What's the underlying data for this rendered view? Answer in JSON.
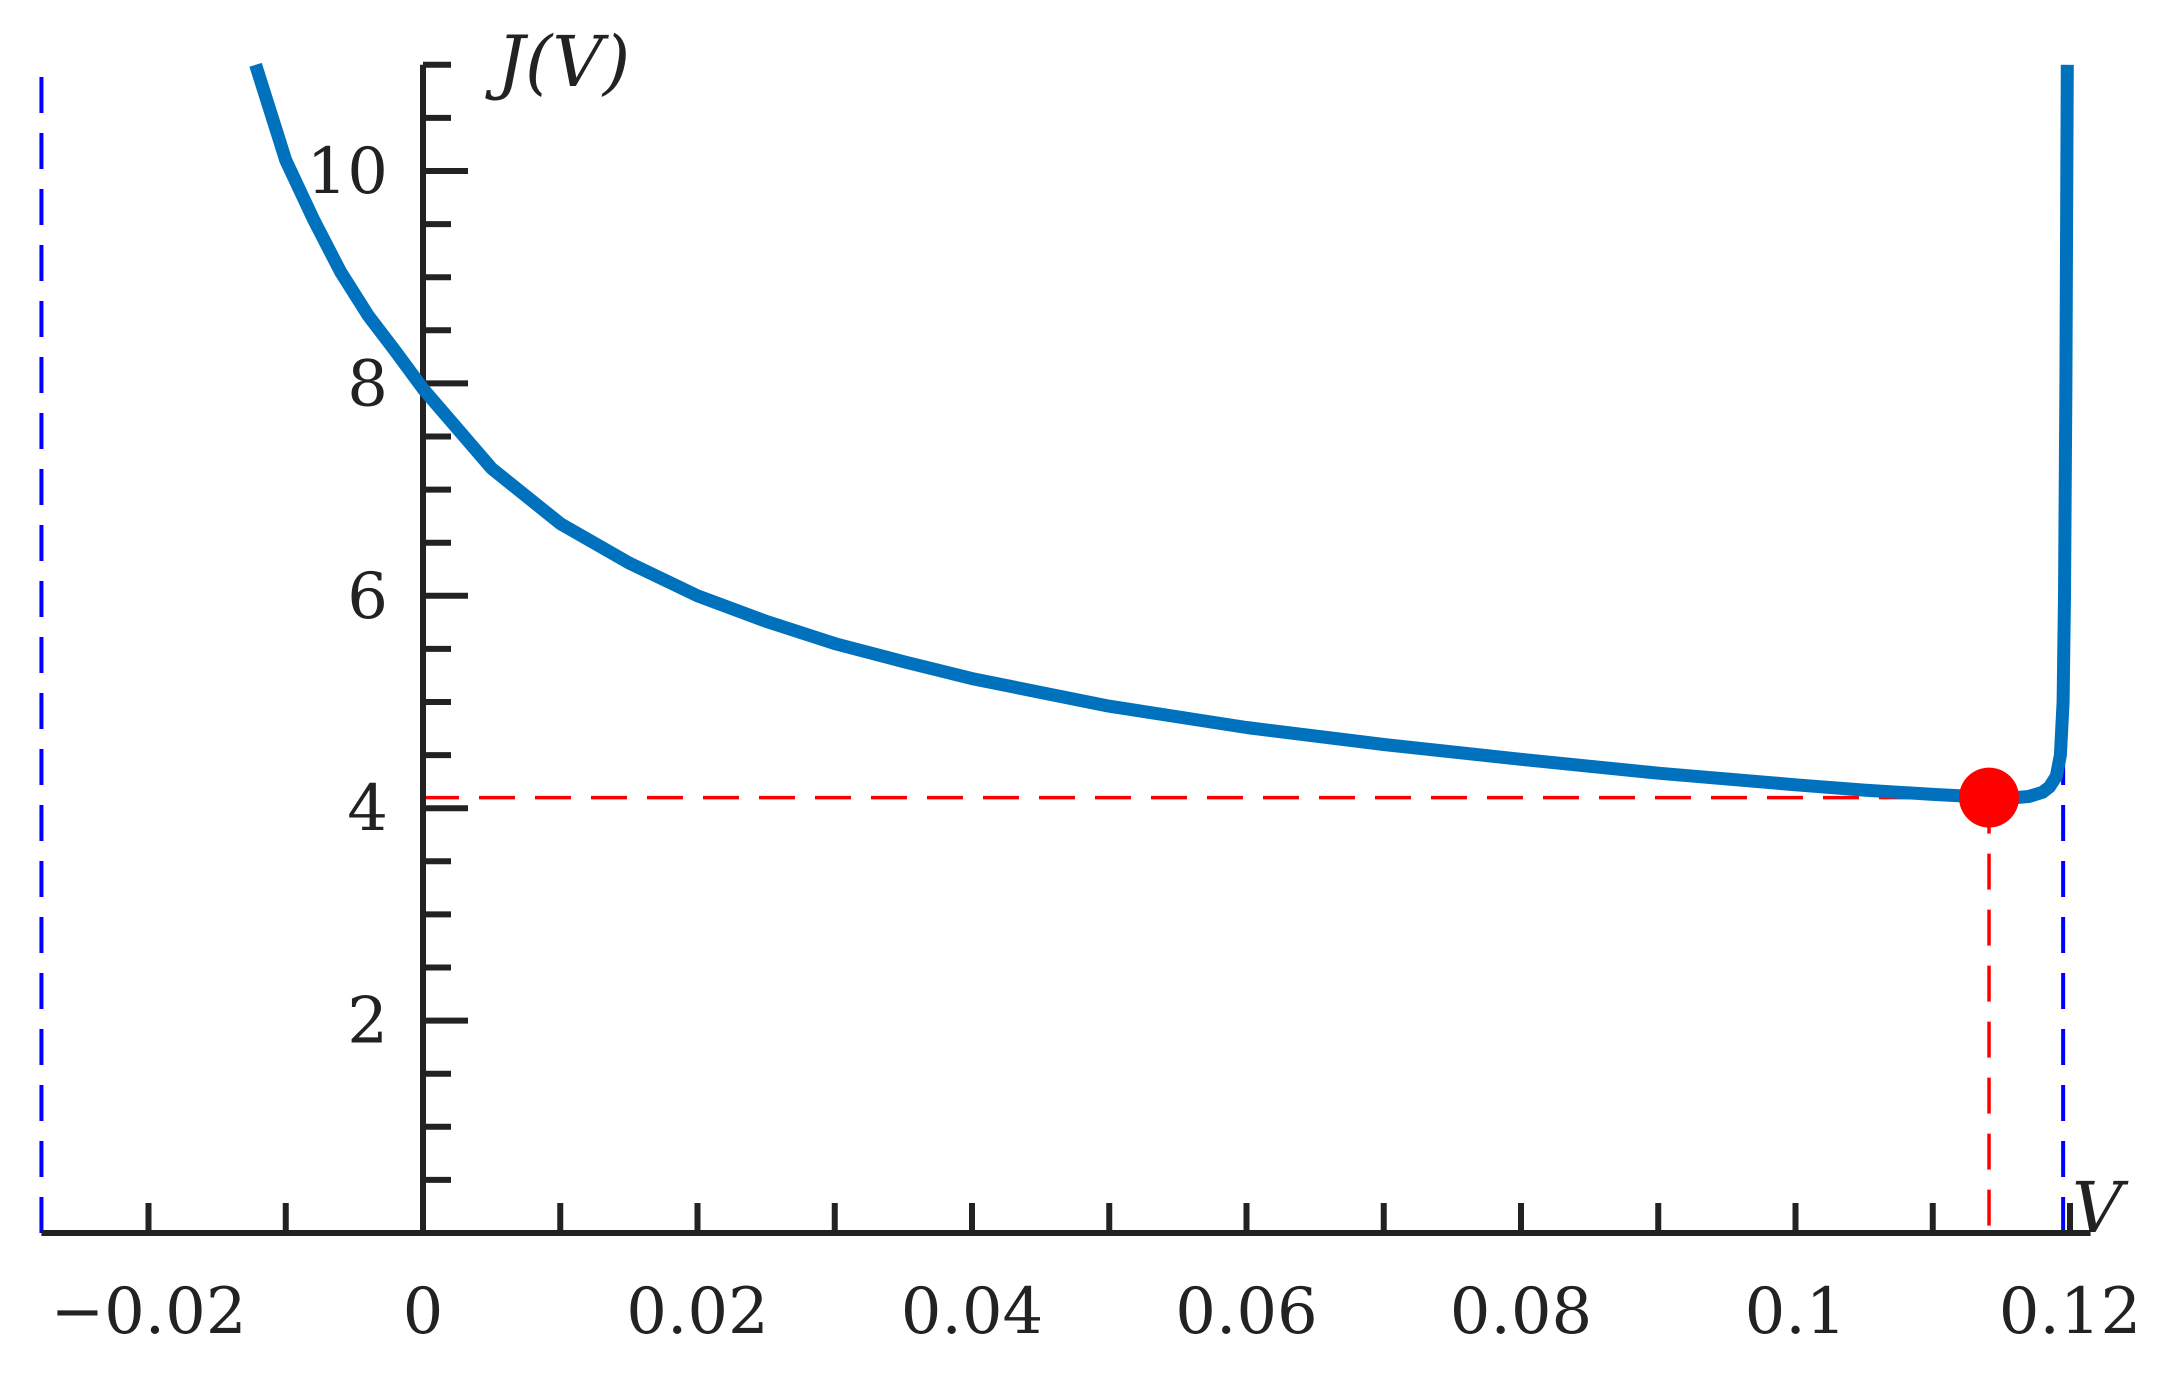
{
  "chart_data": {
    "type": "line",
    "title": "",
    "xlabel": "V",
    "ylabel": "J(V)",
    "xlim": [
      -0.0278,
      0.1215
    ],
    "ylim": [
      0,
      11
    ],
    "x_ticks": [
      -0.02,
      0,
      0.02,
      0.04,
      0.06,
      0.08,
      0.1,
      0.12
    ],
    "x_tick_labels": [
      "−0.02",
      "0",
      "0.02",
      "0.04",
      "0.06",
      "0.08",
      "0.1",
      "0.12"
    ],
    "x_minor_step": 0.01,
    "y_ticks": [
      2,
      4,
      6,
      8,
      10
    ],
    "y_tick_labels": [
      "2",
      "4",
      "6",
      "8",
      "10"
    ],
    "y_minor_step": 0.5,
    "grid": false,
    "legend": "none",
    "series": [
      {
        "x": [
          -0.0122,
          -0.01,
          -0.008,
          -0.006,
          -0.004,
          -0.002,
          0,
          0.005,
          0.01,
          0.015,
          0.02,
          0.025,
          0.03,
          0.035,
          0.04,
          0.05,
          0.06,
          0.07,
          0.08,
          0.09,
          0.1,
          0.105,
          0.11,
          0.113,
          0.115,
          0.116,
          0.117,
          0.118,
          0.1185,
          0.119,
          0.1193,
          0.1195,
          0.1196,
          0.1197,
          0.1198
        ],
        "y": [
          11.0,
          10.1,
          9.55,
          9.05,
          8.64,
          8.3,
          7.95,
          7.2,
          6.68,
          6.31,
          6.0,
          5.76,
          5.55,
          5.38,
          5.22,
          4.96,
          4.76,
          4.6,
          4.46,
          4.33,
          4.22,
          4.17,
          4.13,
          4.11,
          4.1,
          4.1,
          4.11,
          4.15,
          4.2,
          4.3,
          4.5,
          5.0,
          6.0,
          8.0,
          11.0
        ],
        "color": "#0072BD"
      }
    ],
    "asymptotes": [
      {
        "x": -0.0278,
        "color": "#0000ff",
        "style": "dashed"
      },
      {
        "x": 0.1195,
        "color": "#0000ff",
        "style": "dashed"
      }
    ],
    "marked_point": {
      "x": 0.1141,
      "y": 4.1,
      "color": "#ff0000"
    },
    "colors": {
      "axis": "#222222",
      "curve": "#0072BD",
      "asymptote": "#0000ff",
      "guide": "#ff0000"
    }
  }
}
